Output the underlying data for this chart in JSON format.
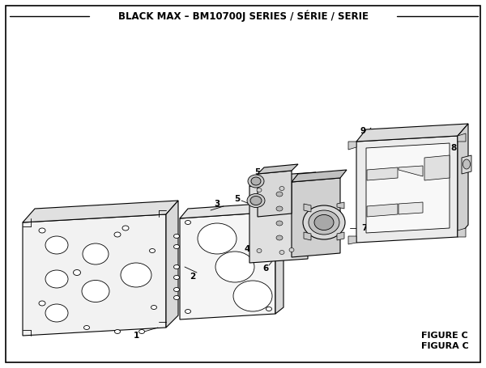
{
  "title": "BLACK MAX – BM10700J SERIES / SÉRIE / SERIE",
  "title_fontsize": 8.5,
  "figure_c_label": "FIGURE C",
  "figura_c_label": "FIGURA C",
  "bg": "#ffffff",
  "lc": "#000000",
  "figsize": [
    6.0,
    4.55
  ],
  "dpi": 100
}
